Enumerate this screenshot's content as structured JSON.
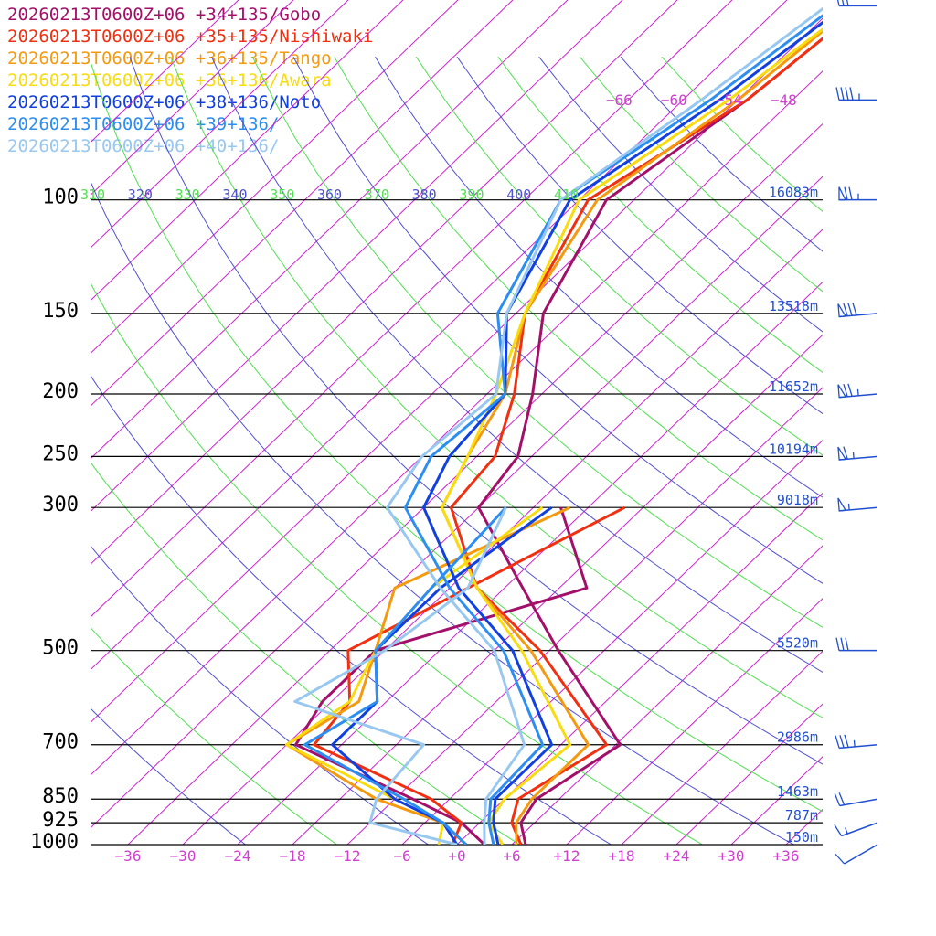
{
  "chart_data": {
    "type": "line",
    "chart_kind": "skew-T log-P sounding",
    "valid_time": "20260213T0600Z+06",
    "p_ticks": [
      100,
      150,
      200,
      250,
      300,
      500,
      700,
      850,
      925,
      1000
    ],
    "p_range": [
      1000,
      100
    ],
    "t_ticks": [
      "−36",
      "−30",
      "−24",
      "−18",
      "−12",
      "−6",
      "+0",
      "+6",
      "+12",
      "+18",
      "+24",
      "+30",
      "+36"
    ],
    "t_tick_values": [
      -36,
      -30,
      -24,
      -18,
      -12,
      -6,
      0,
      6,
      12,
      18,
      24,
      30,
      36
    ],
    "t_range_at_1000hPa": [
      -40,
      40
    ],
    "isotherm_label_row": [
      "−66",
      "−60",
      "−54",
      "−48"
    ],
    "theta_labels": [
      "310",
      "320",
      "330",
      "340",
      "350",
      "360",
      "370",
      "380",
      "390",
      "400",
      "410"
    ],
    "theta_label_colors": [
      "#50e050",
      "#5050d0",
      "#50e050",
      "#5050d0",
      "#50e050",
      "#5050d0",
      "#50e050",
      "#5050d0",
      "#50e050",
      "#5050d0",
      "#50e050"
    ],
    "heights": [
      {
        "p": 100,
        "label": "16083m"
      },
      {
        "p": 150,
        "label": "13518m"
      },
      {
        "p": 200,
        "label": "11652m"
      },
      {
        "p": 250,
        "label": "10194m"
      },
      {
        "p": 300,
        "label": "9018m"
      },
      {
        "p": 500,
        "label": "5520m"
      },
      {
        "p": 700,
        "label": "2986m"
      },
      {
        "p": 850,
        "label": "1463m"
      },
      {
        "p": 925,
        "label": "787m"
      },
      {
        "p": 1000,
        "label": "150m"
      }
    ],
    "grid": true,
    "legend_position": "top-left",
    "series": [
      {
        "name": "20260213T0600Z+06 +34+135/Gobo",
        "color": "#a3106a",
        "temp": [
          [
            1000,
            7.5
          ],
          [
            925,
            4.5
          ],
          [
            850,
            3.5
          ],
          [
            700,
            6.5
          ],
          [
            500,
            -11
          ],
          [
            400,
            -22
          ],
          [
            300,
            -36
          ],
          [
            250,
            -37.5
          ],
          [
            200,
            -43
          ],
          [
            150,
            -51
          ],
          [
            100,
            -57
          ],
          [
            70,
            -53
          ],
          [
            50,
            -51
          ]
        ],
        "dewp": [
          [
            1000,
            3
          ],
          [
            925,
            -2
          ],
          [
            850,
            -10
          ],
          [
            700,
            -29
          ],
          [
            600,
            -31
          ],
          [
            500,
            -31
          ],
          [
            400,
            -15
          ],
          [
            300,
            -27
          ]
        ]
      },
      {
        "name": "20260213T0600Z+06 +35+135/Nishiwaki",
        "color": "#f03010",
        "temp": [
          [
            1000,
            7
          ],
          [
            925,
            3.5
          ],
          [
            850,
            1.5
          ],
          [
            700,
            5
          ],
          [
            500,
            -13
          ],
          [
            400,
            -27
          ],
          [
            300,
            -39
          ],
          [
            250,
            -40
          ],
          [
            200,
            -45
          ],
          [
            150,
            -53
          ],
          [
            100,
            -59
          ],
          [
            70,
            -53
          ],
          [
            50,
            -51
          ]
        ],
        "dewp": [
          [
            1000,
            -0.5
          ],
          [
            925,
            -2
          ],
          [
            850,
            -8
          ],
          [
            700,
            -27
          ],
          [
            600,
            -28
          ],
          [
            500,
            -34
          ],
          [
            400,
            -28
          ],
          [
            300,
            -20
          ]
        ]
      },
      {
        "name": "20260213T0600Z+06 +36+135/Tango",
        "color": "#f49a10",
        "temp": [
          [
            1000,
            6.5
          ],
          [
            925,
            4
          ],
          [
            850,
            3
          ],
          [
            700,
            3
          ],
          [
            500,
            -14
          ],
          [
            400,
            -27
          ],
          [
            300,
            -40
          ],
          [
            250,
            -43
          ],
          [
            200,
            -46
          ],
          [
            150,
            -53
          ],
          [
            100,
            -58
          ],
          [
            70,
            -54
          ],
          [
            50,
            -52
          ]
        ],
        "dewp": [
          [
            1000,
            1
          ],
          [
            925,
            -4
          ],
          [
            850,
            -14
          ],
          [
            700,
            -30
          ],
          [
            600,
            -27
          ],
          [
            500,
            -31
          ],
          [
            400,
            -36
          ],
          [
            300,
            -26
          ]
        ]
      },
      {
        "name": "20260213T0600Z+06 +36+136/Awara",
        "color": "#f8dc10",
        "temp": [
          [
            1000,
            5
          ],
          [
            925,
            1
          ],
          [
            850,
            0
          ],
          [
            700,
            1
          ],
          [
            500,
            -15
          ],
          [
            400,
            -27
          ],
          [
            300,
            -40
          ],
          [
            250,
            -43
          ],
          [
            200,
            -47
          ],
          [
            150,
            -53
          ],
          [
            100,
            -60
          ],
          [
            70,
            -55
          ],
          [
            50,
            -52
          ]
        ],
        "dewp": [
          [
            1000,
            -2
          ],
          [
            925,
            -4
          ],
          [
            850,
            -12
          ],
          [
            700,
            -30
          ],
          [
            600,
            -28
          ],
          [
            500,
            -31
          ],
          [
            400,
            -32
          ],
          [
            300,
            -29
          ]
        ]
      },
      {
        "name": "20260213T0600Z+06 +38+136/Noto",
        "color": "#1040e0",
        "temp": [
          [
            1000,
            4.5
          ],
          [
            925,
            1.5
          ],
          [
            850,
            -1
          ],
          [
            700,
            -1
          ],
          [
            500,
            -16
          ],
          [
            400,
            -29
          ],
          [
            300,
            -42
          ],
          [
            250,
            -45
          ],
          [
            200,
            -46
          ],
          [
            150,
            -55
          ],
          [
            100,
            -61
          ],
          [
            70,
            -56
          ],
          [
            50,
            -53
          ]
        ],
        "dewp": [
          [
            1000,
            0
          ],
          [
            925,
            -4
          ],
          [
            850,
            -12
          ],
          [
            700,
            -25
          ],
          [
            600,
            -25
          ],
          [
            500,
            -31
          ],
          [
            400,
            -31
          ],
          [
            300,
            -28
          ]
        ]
      },
      {
        "name": "20260213T0600Z+06 +39+136/",
        "color": "#2c8ef0",
        "temp": [
          [
            1000,
            4
          ],
          [
            925,
            1
          ],
          [
            850,
            -1.5
          ],
          [
            700,
            -2
          ],
          [
            500,
            -17
          ],
          [
            400,
            -30
          ],
          [
            300,
            -44
          ],
          [
            250,
            -47
          ],
          [
            200,
            -46
          ],
          [
            150,
            -56
          ],
          [
            100,
            -62
          ],
          [
            70,
            -57
          ],
          [
            50,
            -54
          ]
        ],
        "dewp": [
          [
            1000,
            1
          ],
          [
            925,
            -4
          ],
          [
            850,
            -11
          ],
          [
            700,
            -28
          ],
          [
            600,
            -25
          ],
          [
            500,
            -31
          ],
          [
            400,
            -32
          ],
          [
            300,
            -33
          ]
        ]
      },
      {
        "name": "20260213T0600Z+06 +40+136/",
        "color": "#98c8f0",
        "temp": [
          [
            1000,
            3
          ],
          [
            925,
            0.5
          ],
          [
            850,
            -2
          ],
          [
            700,
            -4
          ],
          [
            500,
            -18
          ],
          [
            400,
            -31
          ],
          [
            300,
            -46
          ],
          [
            250,
            -48
          ],
          [
            200,
            -47
          ],
          [
            150,
            -55
          ],
          [
            100,
            -62
          ],
          [
            70,
            -58
          ],
          [
            50,
            -55
          ]
        ],
        "dewp": [
          [
            1000,
            0
          ],
          [
            925,
            -12
          ],
          [
            850,
            -14
          ],
          [
            700,
            -15
          ],
          [
            600,
            -34
          ],
          [
            500,
            -30
          ],
          [
            400,
            -28
          ],
          [
            300,
            -33
          ]
        ]
      }
    ],
    "wind_barbs": [
      {
        "p": 1000,
        "dir": 240,
        "speed_kt": 10
      },
      {
        "p": 925,
        "dir": 250,
        "speed_kt": 15
      },
      {
        "p": 850,
        "dir": 260,
        "speed_kt": 20
      },
      {
        "p": 700,
        "dir": 265,
        "speed_kt": 35
      },
      {
        "p": 500,
        "dir": 270,
        "speed_kt": 30
      },
      {
        "p": 300,
        "dir": 265,
        "speed_kt": 55
      },
      {
        "p": 250,
        "dir": 265,
        "speed_kt": 65
      },
      {
        "p": 200,
        "dir": 265,
        "speed_kt": 75
      },
      {
        "p": 150,
        "dir": 265,
        "speed_kt": 80
      },
      {
        "p": 100,
        "dir": 270,
        "speed_kt": 75
      },
      {
        "p": 70,
        "dir": 270,
        "speed_kt": 45
      },
      {
        "p": 50,
        "dir": 270,
        "speed_kt": 30
      }
    ],
    "colors": {
      "isotherm": "#d020d0",
      "isobar": "#000000",
      "dry_adiabat_even": "#5050d0",
      "dry_adiabat_odd": "#50e050",
      "t_label": "#d040d0",
      "height_label": "#2050d0",
      "wind": "#2050d0"
    }
  }
}
